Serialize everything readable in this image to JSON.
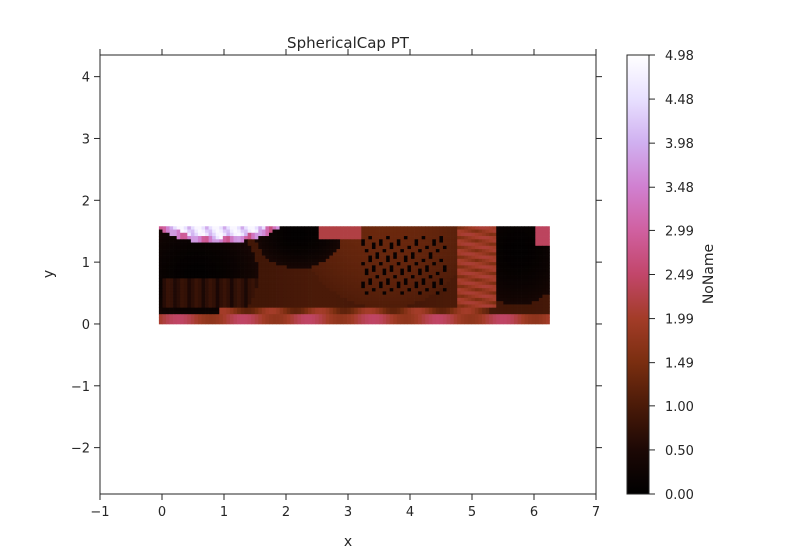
{
  "chart_data": {
    "type": "heatmap",
    "title": "SphericalCap PT",
    "xlabel": "x",
    "ylabel": "y",
    "xlim": [
      -1,
      7
    ],
    "ylim": [
      -2.75,
      4.35
    ],
    "xticks": [
      -1,
      0,
      1,
      2,
      3,
      4,
      5,
      6,
      7
    ],
    "xtick_labels": [
      "−1",
      "0",
      "1",
      "2",
      "3",
      "4",
      "5",
      "6",
      "7"
    ],
    "yticks": [
      -2,
      -1,
      0,
      1,
      2,
      3,
      4
    ],
    "ytick_labels": [
      "−2",
      "−1",
      "0",
      "1",
      "2",
      "3",
      "4"
    ],
    "image_extent": {
      "x": [
        -0.05,
        6.25
      ],
      "y": [
        0.0,
        1.58
      ]
    },
    "grid": false,
    "colorbar": {
      "label": "NoName",
      "range": [
        0.0,
        4.98
      ],
      "ticks": [
        0.0,
        0.5,
        1.0,
        1.49,
        1.99,
        2.49,
        2.99,
        3.48,
        3.98,
        4.48,
        4.98
      ],
      "tick_labels": [
        "0.00",
        "0.50",
        "1.00",
        "1.49",
        "1.99",
        "2.49",
        "2.99",
        "3.48",
        "3.98",
        "4.48",
        "4.98"
      ],
      "colormap": [
        "#000000",
        "#1c0805",
        "#4a1a08",
        "#7a2e10",
        "#a33c28",
        "#c2466a",
        "#d060a0",
        "#d080d0",
        "#d0b0f0",
        "#e8e0ff",
        "#ffffff"
      ]
    }
  }
}
